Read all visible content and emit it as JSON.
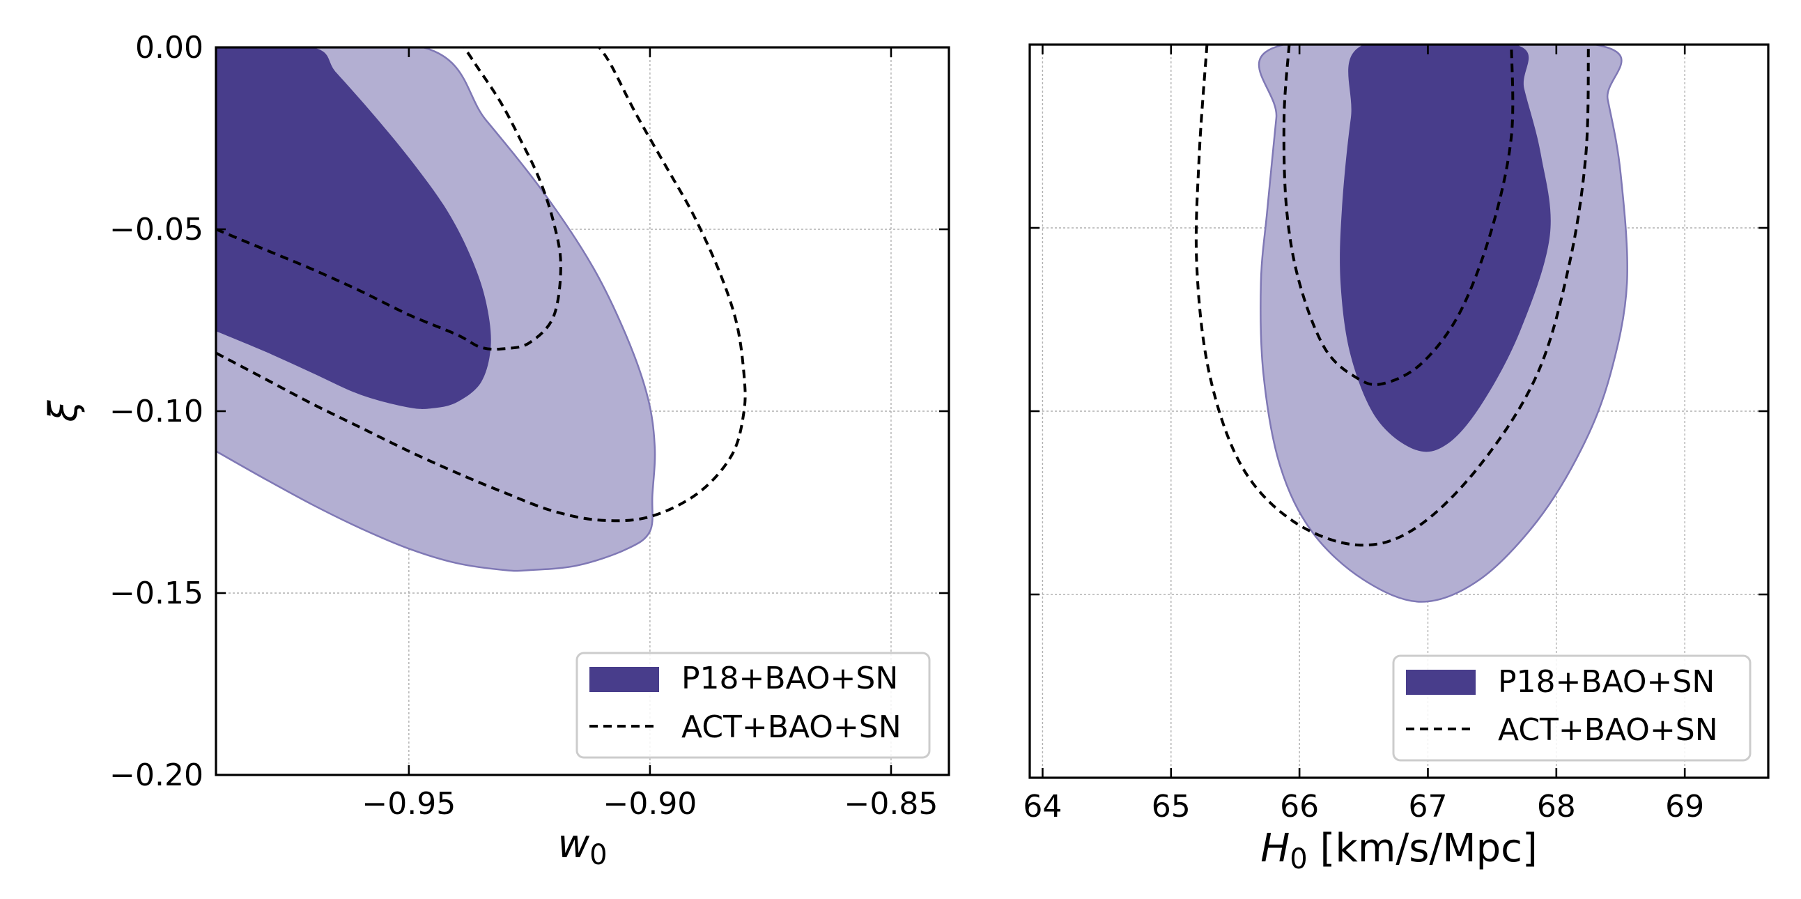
{
  "chart_data": [
    {
      "type": "contour",
      "xlabel_main": "w",
      "xlabel_sub": "0",
      "ylabel": "ξ",
      "xlim": [
        -0.99,
        -0.838
      ],
      "ylim": [
        -0.2,
        0.0
      ],
      "xticks": [
        {
          "value": -0.95,
          "label": "−0.95"
        },
        {
          "value": -0.9,
          "label": "−0.90"
        },
        {
          "value": -0.85,
          "label": "−0.85"
        }
      ],
      "yticks": [
        {
          "value": 0.0,
          "label": "0.00"
        },
        {
          "value": -0.05,
          "label": "−0.05"
        },
        {
          "value": -0.1,
          "label": "−0.10"
        },
        {
          "value": -0.15,
          "label": "−0.15"
        },
        {
          "value": -0.2,
          "label": "−0.20"
        }
      ],
      "grid": true,
      "legend_position": "lower-right",
      "series": [
        {
          "name": "P18+BAO+SN",
          "style": "filled",
          "color_1sigma": "#483d8b",
          "color_2sigma": "#b3afd2",
          "edge_color": "#7f78b5",
          "contour_2sigma": [
            [
              -0.99,
              -0.111
            ],
            [
              -0.98,
              -0.1185
            ],
            [
              -0.97,
              -0.1257
            ],
            [
              -0.96,
              -0.1322
            ],
            [
              -0.95,
              -0.1378
            ],
            [
              -0.94,
              -0.1418
            ],
            [
              -0.93,
              -0.1437
            ],
            [
              -0.925,
              -0.1437
            ],
            [
              -0.915,
              -0.1424
            ],
            [
              -0.905,
              -0.138
            ],
            [
              -0.9,
              -0.133
            ],
            [
              -0.8995,
              -0.123
            ],
            [
              -0.899,
              -0.11
            ],
            [
              -0.9005,
              -0.096
            ],
            [
              -0.905,
              -0.079
            ],
            [
              -0.912,
              -0.06
            ],
            [
              -0.922,
              -0.04
            ],
            [
              -0.934,
              -0.02
            ],
            [
              -0.947,
              0.0
            ],
            [
              -0.99,
              0.0
            ]
          ],
          "contour_1sigma": [
            [
              -0.99,
              -0.078
            ],
            [
              -0.98,
              -0.0835
            ],
            [
              -0.97,
              -0.0895
            ],
            [
              -0.96,
              -0.0955
            ],
            [
              -0.95,
              -0.099
            ],
            [
              -0.945,
              -0.0992
            ],
            [
              -0.94,
              -0.0975
            ],
            [
              -0.935,
              -0.092
            ],
            [
              -0.933,
              -0.082
            ],
            [
              -0.934,
              -0.07
            ],
            [
              -0.937,
              -0.058
            ],
            [
              -0.942,
              -0.045
            ],
            [
              -0.949,
              -0.032
            ],
            [
              -0.957,
              -0.019
            ],
            [
              -0.965,
              -0.007
            ],
            [
              -0.97,
              0.0
            ],
            [
              -0.99,
              0.0
            ]
          ]
        },
        {
          "name": "ACT+BAO+SN",
          "style": "dashed",
          "color": "#000000",
          "contour_inner": [
            [
              -0.99,
              -0.05
            ],
            [
              -0.98,
              -0.0555
            ],
            [
              -0.97,
              -0.061
            ],
            [
              -0.96,
              -0.067
            ],
            [
              -0.95,
              -0.0735
            ],
            [
              -0.94,
              -0.079
            ],
            [
              -0.935,
              -0.0825
            ],
            [
              -0.93,
              -0.0828
            ],
            [
              -0.925,
              -0.0812
            ],
            [
              -0.92,
              -0.074
            ],
            [
              -0.9185,
              -0.06
            ],
            [
              -0.92,
              -0.048
            ],
            [
              -0.923,
              -0.036
            ],
            [
              -0.927,
              -0.025
            ],
            [
              -0.931,
              -0.015
            ],
            [
              -0.936,
              -0.005
            ],
            [
              -0.9385,
              0.0
            ]
          ],
          "contour_outer": [
            [
              -0.99,
              -0.084
            ],
            [
              -0.98,
              -0.091
            ],
            [
              -0.97,
              -0.098
            ],
            [
              -0.96,
              -0.1045
            ],
            [
              -0.95,
              -0.111
            ],
            [
              -0.94,
              -0.117
            ],
            [
              -0.93,
              -0.1225
            ],
            [
              -0.92,
              -0.1275
            ],
            [
              -0.91,
              -0.13
            ],
            [
              -0.9,
              -0.129
            ],
            [
              -0.89,
              -0.1225
            ],
            [
              -0.883,
              -0.112
            ],
            [
              -0.8805,
              -0.1
            ],
            [
              -0.8805,
              -0.09
            ],
            [
              -0.882,
              -0.076
            ],
            [
              -0.8855,
              -0.062
            ],
            [
              -0.891,
              -0.046
            ],
            [
              -0.897,
              -0.032
            ],
            [
              -0.903,
              -0.018
            ],
            [
              -0.908,
              -0.005
            ],
            [
              -0.9105,
              0.0
            ]
          ]
        }
      ]
    },
    {
      "type": "contour",
      "xlabel_main": "H",
      "xlabel_sub": "0",
      "xlabel_rest": " [km/s/Mpc]",
      "ylabel": "",
      "xlim": [
        63.9,
        69.65
      ],
      "ylim": [
        -0.2,
        0.0
      ],
      "xticks": [
        {
          "value": 64,
          "label": "64"
        },
        {
          "value": 65,
          "label": "65"
        },
        {
          "value": 66,
          "label": "66"
        },
        {
          "value": 67,
          "label": "67"
        },
        {
          "value": 68,
          "label": "68"
        },
        {
          "value": 69,
          "label": "69"
        }
      ],
      "yticks": [
        {
          "value": 0.0,
          "label": ""
        },
        {
          "value": -0.05,
          "label": ""
        },
        {
          "value": -0.1,
          "label": ""
        },
        {
          "value": -0.15,
          "label": ""
        },
        {
          "value": -0.2,
          "label": ""
        }
      ],
      "grid": true,
      "legend_position": "lower-right",
      "series": [
        {
          "name": "P18+BAO+SN",
          "style": "filled",
          "color_1sigma": "#483d8b",
          "color_2sigma": "#b3afd2",
          "edge_color": "#7f78b5",
          "contour_2sigma": [
            [
              65.88,
              0.0
            ],
            [
              65.82,
              -0.02
            ],
            [
              65.75,
              -0.045
            ],
            [
              65.7,
              -0.065
            ],
            [
              65.72,
              -0.09
            ],
            [
              65.85,
              -0.115
            ],
            [
              66.1,
              -0.133
            ],
            [
              66.5,
              -0.146
            ],
            [
              66.95,
              -0.152
            ],
            [
              67.4,
              -0.146
            ],
            [
              67.85,
              -0.13
            ],
            [
              68.2,
              -0.11
            ],
            [
              68.42,
              -0.09
            ],
            [
              68.55,
              -0.065
            ],
            [
              68.5,
              -0.035
            ],
            [
              68.4,
              -0.015
            ],
            [
              68.3,
              0.0
            ]
          ],
          "contour_1sigma": [
            [
              66.5,
              0.0
            ],
            [
              66.4,
              -0.02
            ],
            [
              66.33,
              -0.045
            ],
            [
              66.32,
              -0.065
            ],
            [
              66.4,
              -0.085
            ],
            [
              66.6,
              -0.102
            ],
            [
              66.9,
              -0.1105
            ],
            [
              67.15,
              -0.109
            ],
            [
              67.42,
              -0.098
            ],
            [
              67.72,
              -0.078
            ],
            [
              67.95,
              -0.052
            ],
            [
              67.88,
              -0.03
            ],
            [
              67.75,
              -0.012
            ],
            [
              67.68,
              0.0
            ]
          ]
        },
        {
          "name": "ACT+BAO+SN",
          "style": "dashed",
          "color": "#000000",
          "contour_inner": [
            [
              65.92,
              0.0
            ],
            [
              65.88,
              -0.02
            ],
            [
              65.9,
              -0.045
            ],
            [
              66.0,
              -0.065
            ],
            [
              66.2,
              -0.083
            ],
            [
              66.45,
              -0.091
            ],
            [
              66.65,
              -0.0925
            ],
            [
              66.95,
              -0.087
            ],
            [
              67.25,
              -0.073
            ],
            [
              67.5,
              -0.05
            ],
            [
              67.65,
              -0.025
            ],
            [
              67.65,
              0.0
            ]
          ],
          "contour_outer": [
            [
              65.28,
              0.0
            ],
            [
              65.22,
              -0.03
            ],
            [
              65.2,
              -0.06
            ],
            [
              65.3,
              -0.09
            ],
            [
              65.55,
              -0.115
            ],
            [
              65.95,
              -0.13
            ],
            [
              66.45,
              -0.1365
            ],
            [
              66.9,
              -0.132
            ],
            [
              67.4,
              -0.115
            ],
            [
              67.85,
              -0.09
            ],
            [
              68.1,
              -0.06
            ],
            [
              68.23,
              -0.03
            ],
            [
              68.25,
              0.0
            ]
          ]
        }
      ]
    }
  ]
}
